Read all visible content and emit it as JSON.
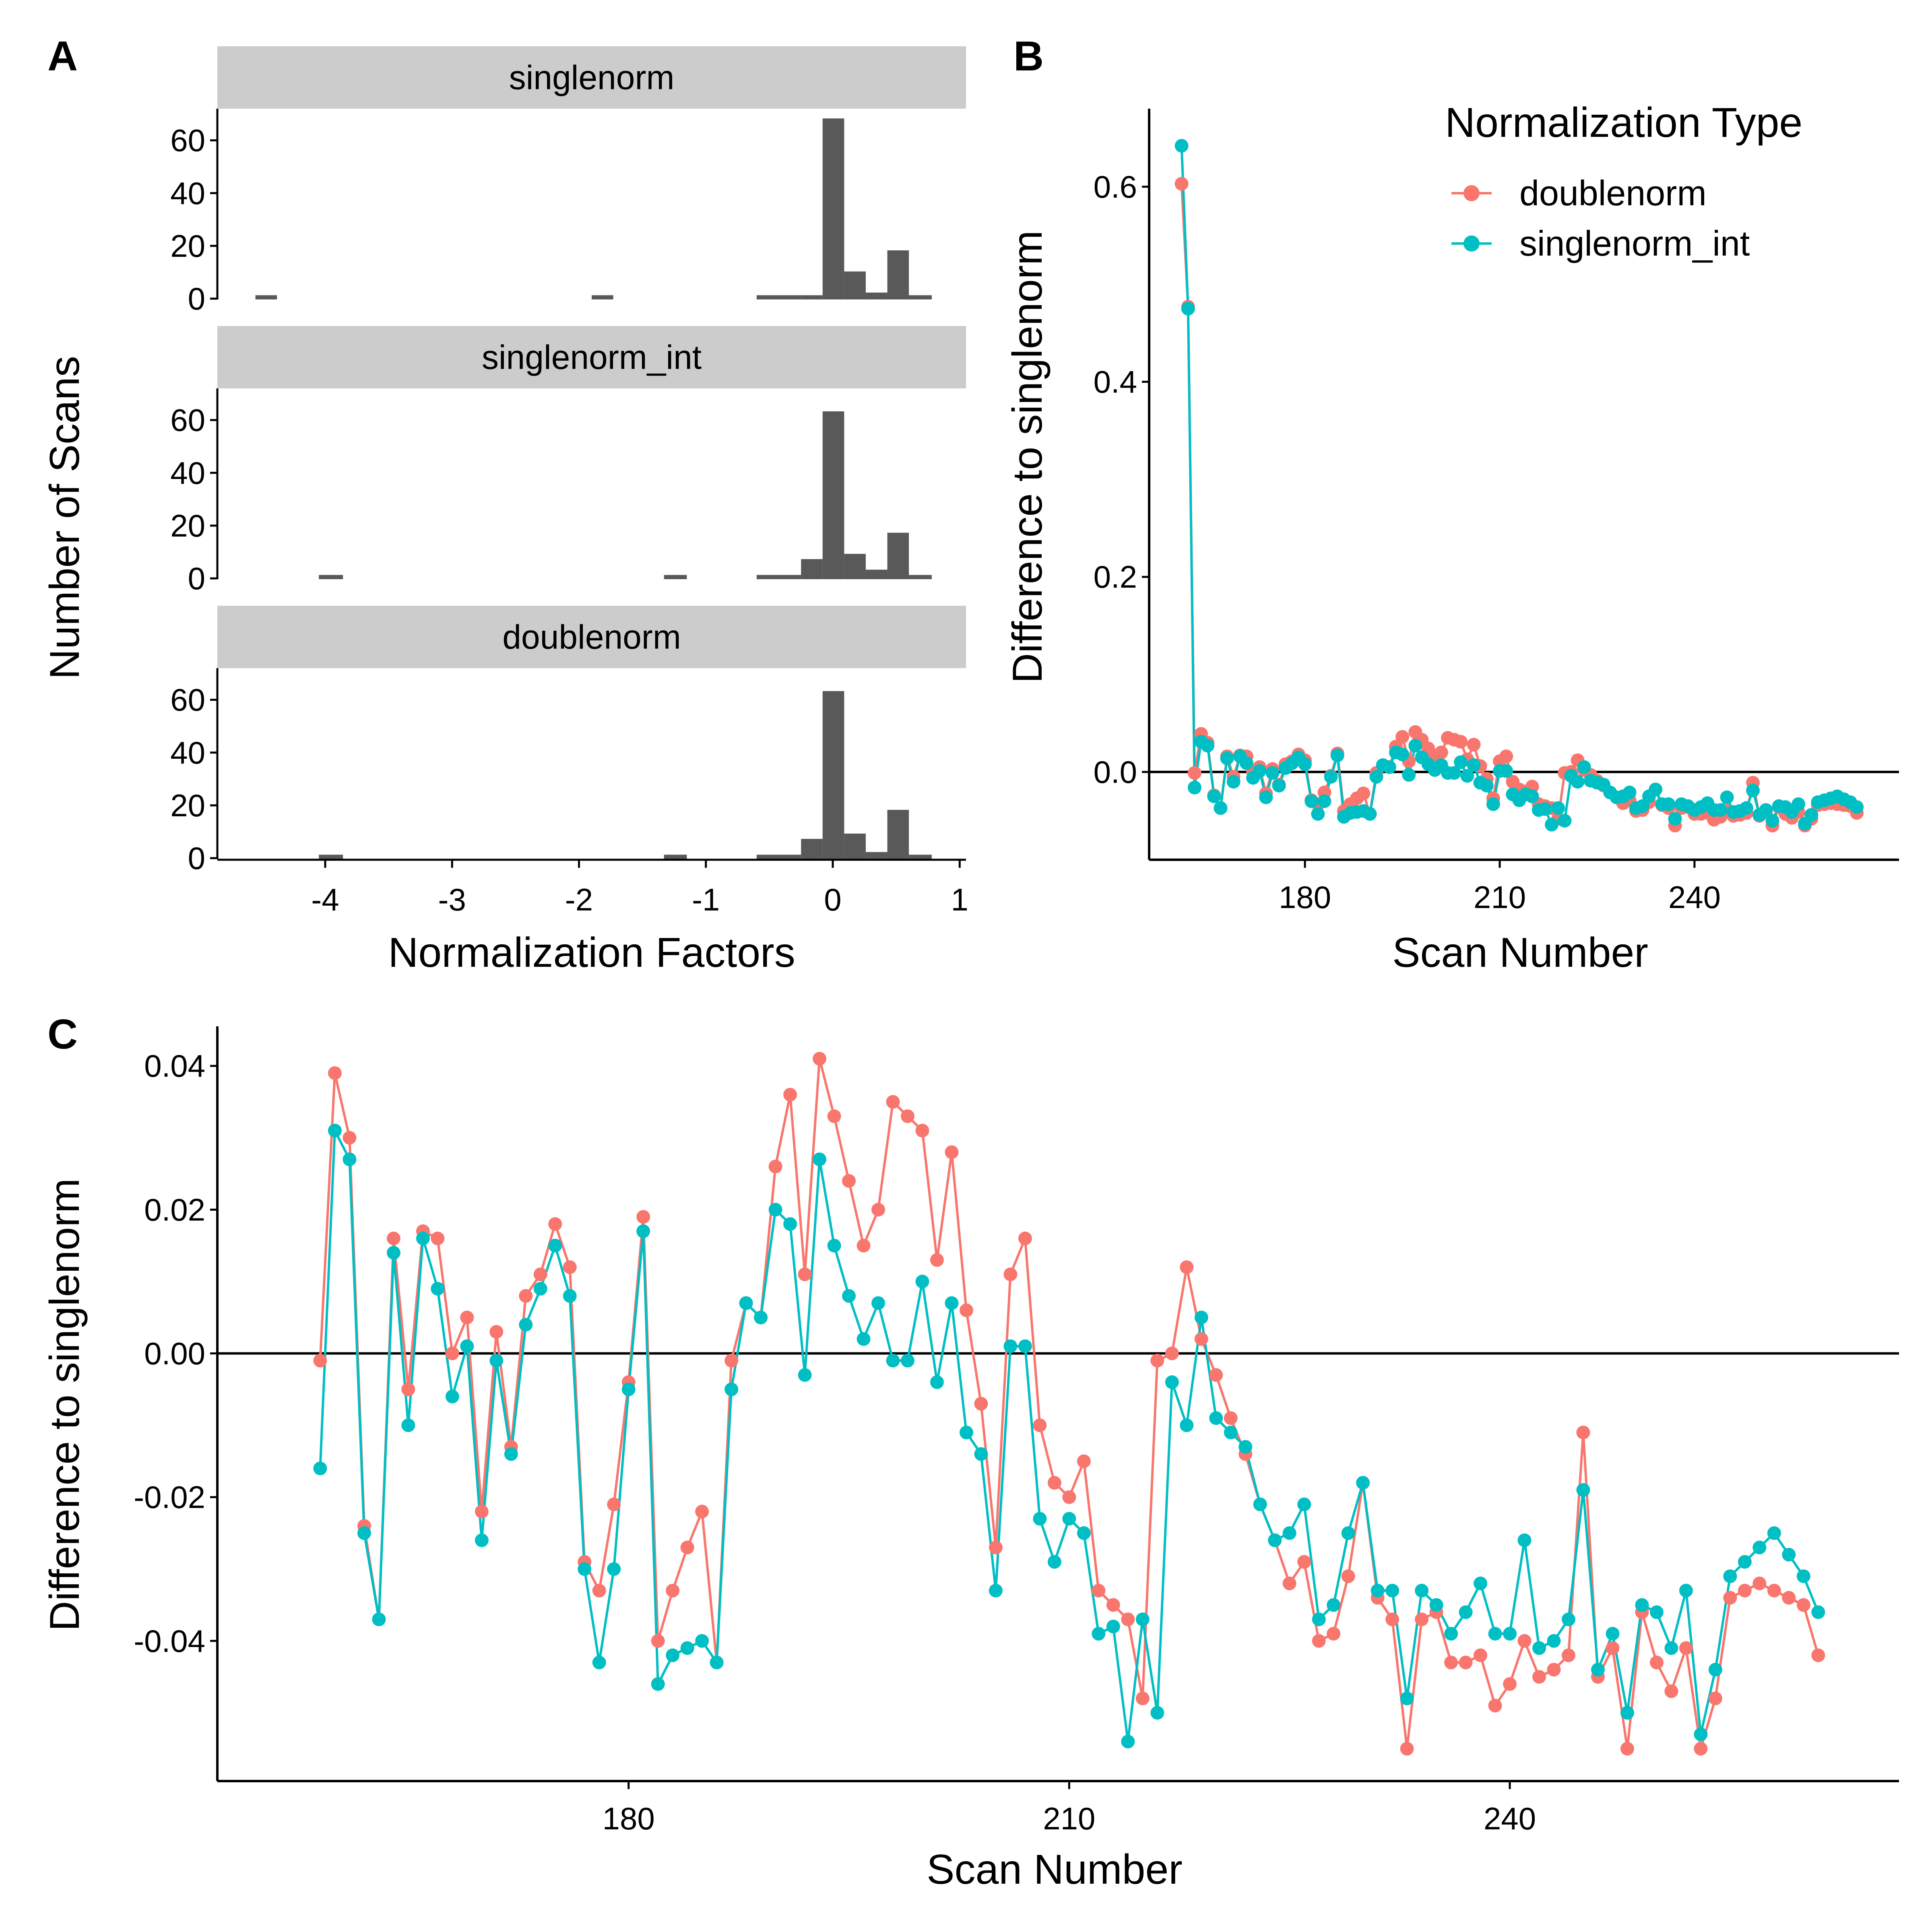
{
  "colors": {
    "doublenorm": "#F8766D",
    "singlenorm_int": "#00BFC4",
    "bar": "#595959",
    "strip": "#CCCCCC"
  },
  "panel_labels": [
    "A",
    "B",
    "C"
  ],
  "legend": {
    "title": "Normalization Type",
    "items": [
      "doublenorm",
      "singlenorm_int"
    ]
  },
  "chart_data": [
    {
      "panel": "A",
      "type": "bar",
      "xlabel": "Normalization Factors",
      "ylabel": "Number of Scans",
      "xlim": [
        -4.85,
        1.05
      ],
      "ylim": [
        0,
        72
      ],
      "xticks": [
        -4,
        -3,
        -2,
        -1,
        0,
        1
      ],
      "xtick_labels": [
        "-4",
        "-3",
        "-2",
        "-1",
        "0",
        "1"
      ],
      "yticks": [
        0,
        20,
        40,
        60
      ],
      "ytick_labels": [
        "0",
        "20",
        "40",
        "60"
      ],
      "facets": [
        {
          "name": "singlenorm",
          "bins": [
            {
              "x0": -4.55,
              "x1": -4.38,
              "count": 1
            },
            {
              "x0": -1.9,
              "x1": -1.73,
              "count": 1
            },
            {
              "x0": -0.6,
              "x1": -0.25,
              "count": 1
            },
            {
              "x0": -0.25,
              "x1": -0.08,
              "count": 1
            },
            {
              "x0": -0.08,
              "x1": 0.09,
              "count": 68
            },
            {
              "x0": 0.09,
              "x1": 0.26,
              "count": 10
            },
            {
              "x0": 0.26,
              "x1": 0.43,
              "count": 2
            },
            {
              "x0": 0.43,
              "x1": 0.6,
              "count": 18
            },
            {
              "x0": 0.6,
              "x1": 0.78,
              "count": 1
            }
          ]
        },
        {
          "name": "singlenorm_int",
          "bins": [
            {
              "x0": -4.05,
              "x1": -3.86,
              "count": 1
            },
            {
              "x0": -1.33,
              "x1": -1.15,
              "count": 1
            },
            {
              "x0": -0.6,
              "x1": -0.25,
              "count": 1
            },
            {
              "x0": -0.25,
              "x1": -0.08,
              "count": 7
            },
            {
              "x0": -0.08,
              "x1": 0.09,
              "count": 63
            },
            {
              "x0": 0.09,
              "x1": 0.26,
              "count": 9
            },
            {
              "x0": 0.26,
              "x1": 0.43,
              "count": 3
            },
            {
              "x0": 0.43,
              "x1": 0.6,
              "count": 17
            },
            {
              "x0": 0.6,
              "x1": 0.78,
              "count": 1
            }
          ]
        },
        {
          "name": "doublenorm",
          "bins": [
            {
              "x0": -4.05,
              "x1": -3.86,
              "count": 1
            },
            {
              "x0": -1.33,
              "x1": -1.15,
              "count": 1
            },
            {
              "x0": -0.6,
              "x1": -0.25,
              "count": 1
            },
            {
              "x0": -0.25,
              "x1": -0.08,
              "count": 7
            },
            {
              "x0": -0.08,
              "x1": 0.09,
              "count": 63
            },
            {
              "x0": 0.09,
              "x1": 0.26,
              "count": 9
            },
            {
              "x0": 0.26,
              "x1": 0.43,
              "count": 2
            },
            {
              "x0": 0.43,
              "x1": 0.6,
              "count": 18
            },
            {
              "x0": 0.6,
              "x1": 0.78,
              "count": 1
            }
          ]
        }
      ]
    },
    {
      "panel": "B",
      "type": "line",
      "xlabel": "Scan Number",
      "ylabel": "Difference to singlenorm",
      "xlim": [
        156,
        271.5
      ],
      "ylim": [
        -0.09,
        0.68
      ],
      "xticks": [
        180,
        210,
        240
      ],
      "xtick_labels": [
        "180",
        "210",
        "240"
      ],
      "yticks": [
        0,
        0.2,
        0.4,
        0.6
      ],
      "ytick_labels": [
        "0.0",
        "0.2",
        "0.4",
        "0.6"
      ],
      "hline": 0,
      "x_start": 161,
      "series": [
        {
          "name": "doublenorm",
          "values": [
            0.603,
            0.477,
            -0.001,
            0.039,
            0.03,
            -0.024,
            -0.037,
            0.016,
            -0.005,
            0.017,
            0.016,
            0.0,
            0.005,
            -0.022,
            0.003,
            -0.013,
            0.008,
            0.011,
            0.018,
            0.012,
            -0.029,
            -0.033,
            -0.021,
            -0.004,
            0.019,
            -0.04,
            -0.033,
            -0.027,
            -0.022,
            -0.043,
            -0.001,
            0.007,
            0.005,
            0.026,
            0.036,
            0.011,
            0.041,
            0.033,
            0.024,
            0.015,
            0.02,
            0.035,
            0.033,
            0.031,
            0.013,
            0.028,
            0.006,
            -0.007,
            -0.027,
            0.011,
            0.016,
            -0.01,
            -0.018,
            -0.02,
            -0.015,
            -0.033,
            -0.035,
            -0.037,
            -0.048,
            -0.001,
            -0.0,
            0.012,
            0.002,
            -0.003,
            -0.009,
            -0.014,
            -0.021,
            -0.026,
            -0.032,
            -0.029,
            -0.04,
            -0.039,
            -0.031,
            -0.018,
            -0.034,
            -0.037,
            -0.055,
            -0.037,
            -0.036,
            -0.043,
            -0.043,
            -0.042,
            -0.049,
            -0.046,
            -0.04,
            -0.045,
            -0.044,
            -0.042,
            -0.011,
            -0.045,
            -0.041,
            -0.055,
            -0.036,
            -0.043,
            -0.047,
            -0.041,
            -0.055,
            -0.048,
            -0.034,
            -0.033,
            -0.032,
            -0.033,
            -0.034,
            -0.035,
            -0.042
          ]
        },
        {
          "name": "singlenorm_int",
          "values": [
            0.642,
            0.475,
            -0.016,
            0.031,
            0.027,
            -0.025,
            -0.037,
            0.014,
            -0.01,
            0.016,
            0.009,
            -0.006,
            0.001,
            -0.026,
            -0.001,
            -0.014,
            0.004,
            0.009,
            0.015,
            0.008,
            -0.03,
            -0.043,
            -0.03,
            -0.005,
            0.017,
            -0.046,
            -0.042,
            -0.041,
            -0.04,
            -0.043,
            -0.005,
            0.007,
            0.005,
            0.02,
            0.018,
            -0.003,
            0.027,
            0.015,
            0.008,
            0.002,
            0.007,
            -0.001,
            -0.001,
            0.01,
            -0.004,
            0.007,
            -0.011,
            -0.014,
            -0.033,
            0.001,
            0.001,
            -0.023,
            -0.029,
            -0.023,
            -0.025,
            -0.039,
            -0.038,
            -0.054,
            -0.037,
            -0.05,
            -0.004,
            -0.01,
            0.005,
            -0.009,
            -0.011,
            -0.013,
            -0.021,
            -0.026,
            -0.025,
            -0.021,
            -0.037,
            -0.035,
            -0.025,
            -0.018,
            -0.033,
            -0.033,
            -0.048,
            -0.033,
            -0.035,
            -0.039,
            -0.036,
            -0.032,
            -0.039,
            -0.039,
            -0.026,
            -0.041,
            -0.04,
            -0.037,
            -0.019,
            -0.044,
            -0.039,
            -0.05,
            -0.035,
            -0.036,
            -0.041,
            -0.033,
            -0.053,
            -0.044,
            -0.031,
            -0.029,
            -0.027,
            -0.025,
            -0.028,
            -0.031,
            -0.036
          ]
        }
      ]
    },
    {
      "panel": "C",
      "type": "line",
      "xlabel": "Scan Number",
      "ylabel": "Difference to singlenorm",
      "xlim": [
        152,
        266.5
      ],
      "ylim": [
        -0.0595,
        0.0455
      ],
      "xticks": [
        180,
        210,
        240
      ],
      "xtick_labels": [
        "180",
        "210",
        "240"
      ],
      "yticks": [
        -0.04,
        -0.02,
        0,
        0.02,
        0.04
      ],
      "ytick_labels": [
        "-0.04",
        "-0.02",
        "0.00",
        "0.02",
        "0.04"
      ],
      "hline": 0,
      "x_start": 159,
      "series": [
        {
          "name": "doublenorm",
          "values": [
            -0.001,
            0.039,
            0.03,
            -0.024,
            -0.037,
            0.016,
            -0.005,
            0.017,
            0.016,
            0.0,
            0.005,
            -0.022,
            0.003,
            -0.013,
            0.008,
            0.011,
            0.018,
            0.012,
            -0.029,
            -0.033,
            -0.021,
            -0.004,
            0.019,
            -0.04,
            -0.033,
            -0.027,
            -0.022,
            -0.043,
            -0.001,
            0.007,
            0.005,
            0.026,
            0.036,
            0.011,
            0.041,
            0.033,
            0.024,
            0.015,
            0.02,
            0.035,
            0.033,
            0.031,
            0.013,
            0.028,
            0.006,
            -0.007,
            -0.027,
            0.011,
            0.016,
            -0.01,
            -0.018,
            -0.02,
            -0.015,
            -0.033,
            -0.035,
            -0.037,
            -0.048,
            -0.001,
            -0.0,
            0.012,
            0.002,
            -0.003,
            -0.009,
            -0.014,
            -0.021,
            -0.026,
            -0.032,
            -0.029,
            -0.04,
            -0.039,
            -0.031,
            -0.018,
            -0.034,
            -0.037,
            -0.055,
            -0.037,
            -0.036,
            -0.043,
            -0.043,
            -0.042,
            -0.049,
            -0.046,
            -0.04,
            -0.045,
            -0.044,
            -0.042,
            -0.011,
            -0.045,
            -0.041,
            -0.055,
            -0.036,
            -0.043,
            -0.047,
            -0.041,
            -0.055,
            -0.048,
            -0.034,
            -0.033,
            -0.032,
            -0.033,
            -0.034,
            -0.035,
            -0.042
          ]
        },
        {
          "name": "singlenorm_int",
          "values": [
            -0.016,
            0.031,
            0.027,
            -0.025,
            -0.037,
            0.014,
            -0.01,
            0.016,
            0.009,
            -0.006,
            0.001,
            -0.026,
            -0.001,
            -0.014,
            0.004,
            0.009,
            0.015,
            0.008,
            -0.03,
            -0.043,
            -0.03,
            -0.005,
            0.017,
            -0.046,
            -0.042,
            -0.041,
            -0.04,
            -0.043,
            -0.005,
            0.007,
            0.005,
            0.02,
            0.018,
            -0.003,
            0.027,
            0.015,
            0.008,
            0.002,
            0.007,
            -0.001,
            -0.001,
            0.01,
            -0.004,
            0.007,
            -0.011,
            -0.014,
            -0.033,
            0.001,
            0.001,
            -0.023,
            -0.029,
            -0.023,
            -0.025,
            -0.039,
            -0.038,
            -0.054,
            -0.037,
            -0.05,
            -0.004,
            -0.01,
            0.005,
            -0.009,
            -0.011,
            -0.013,
            -0.021,
            -0.026,
            -0.025,
            -0.021,
            -0.037,
            -0.035,
            -0.025,
            -0.018,
            -0.033,
            -0.033,
            -0.048,
            -0.033,
            -0.035,
            -0.039,
            -0.036,
            -0.032,
            -0.039,
            -0.039,
            -0.026,
            -0.041,
            -0.04,
            -0.037,
            -0.019,
            -0.044,
            -0.039,
            -0.05,
            -0.035,
            -0.036,
            -0.041,
            -0.033,
            -0.053,
            -0.044,
            -0.031,
            -0.029,
            -0.027,
            -0.025,
            -0.028,
            -0.031,
            -0.036
          ]
        }
      ]
    }
  ]
}
